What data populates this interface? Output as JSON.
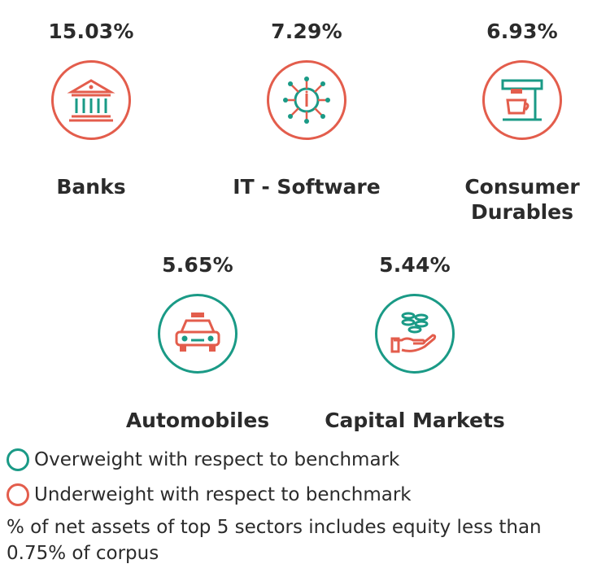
{
  "sectors": [
    {
      "name": "Banks",
      "pct": "15.03%",
      "icon": "bank-icon",
      "weight": "underweight"
    },
    {
      "name": "IT - Software",
      "pct": "7.29%",
      "icon": "circuit-chip-icon",
      "weight": "underweight"
    },
    {
      "name": "Consumer\nDurables",
      "pct": "6.93%",
      "icon": "coffee-machine-icon",
      "weight": "underweight"
    },
    {
      "name": "Automobiles",
      "pct": "5.65%",
      "icon": "car-icon",
      "weight": "overweight"
    },
    {
      "name": "Capital Markets",
      "pct": "5.44%",
      "icon": "hand-coins-icon",
      "weight": "overweight"
    }
  ],
  "legend": {
    "overweight": "Overweight with respect to benchmark",
    "underweight": "Underweight with respect to benchmark"
  },
  "note": "% of net assets of top 5 sectors includes equity less than 0.75% of corpus",
  "colors": {
    "overweight_ring": "#1a9a86",
    "underweight_ring": "#e35d4c",
    "icon_green": "#1a9a86",
    "icon_red": "#e35d4c",
    "text": "#2b2b2b"
  }
}
